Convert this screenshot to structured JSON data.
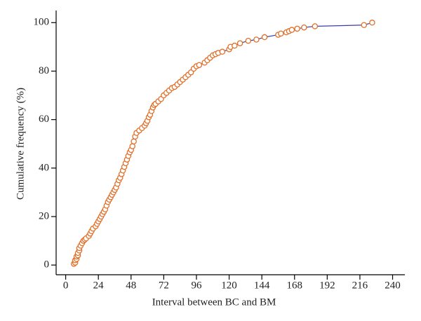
{
  "chart_data": {
    "type": "line",
    "x_label": "Interval between BC and BM",
    "y_label": "Cumulative frequency (%)",
    "x": [
      6,
      7,
      7,
      8,
      8,
      9,
      9,
      10,
      10,
      11,
      12,
      13,
      14,
      15,
      17,
      18,
      19,
      20,
      22,
      23,
      24,
      25,
      26,
      27,
      28,
      29,
      30,
      31,
      32,
      33,
      34,
      35,
      36,
      37,
      38,
      39,
      40,
      41,
      42,
      43,
      44,
      45,
      46,
      47,
      48,
      49,
      50,
      51,
      52,
      54,
      56,
      58,
      59,
      60,
      61,
      62,
      63,
      64,
      65,
      66,
      68,
      70,
      72,
      74,
      76,
      78,
      80,
      82,
      84,
      86,
      88,
      90,
      92,
      94,
      96,
      98,
      102,
      104,
      106,
      108,
      110,
      112,
      115,
      120,
      121,
      124,
      128,
      134,
      140,
      146,
      156,
      158,
      162,
      164,
      166,
      170,
      175,
      183,
      219,
      225
    ],
    "series": [
      {
        "color": "#3b3bb0",
        "marker_color": "#e0702a",
        "values": [
          0.5,
          1,
          2,
          2.5,
          3.5,
          4,
          5,
          6,
          7,
          8,
          9,
          10,
          10.5,
          11,
          12,
          13,
          14,
          15,
          16,
          17,
          18,
          19,
          20,
          21,
          22,
          23,
          24.5,
          26,
          27,
          28,
          29,
          30,
          31,
          32,
          33.5,
          35,
          36,
          37.5,
          39,
          40.5,
          42,
          43.5,
          45,
          46.5,
          47.5,
          49,
          51,
          53,
          54.5,
          55.5,
          56.5,
          57.5,
          58.5,
          59.5,
          61,
          62,
          63.5,
          65,
          66,
          66.5,
          67.5,
          68.5,
          70,
          71,
          72,
          73,
          73.5,
          74.5,
          75.5,
          76.5,
          77.5,
          78.5,
          79.5,
          81,
          82,
          82.5,
          83.5,
          84.5,
          85.5,
          86.5,
          87,
          87.5,
          88,
          89,
          90,
          90.5,
          91.5,
          92.5,
          93,
          94,
          95,
          95.5,
          96,
          96.5,
          97,
          97.5,
          98,
          98.5,
          99,
          100
        ]
      }
    ],
    "xlim": [
      -7,
      249
    ],
    "ylim": [
      -4,
      105
    ],
    "xticks": [
      0,
      24,
      48,
      72,
      96,
      120,
      144,
      168,
      192,
      216,
      240
    ],
    "yticks": [
      0,
      20,
      40,
      60,
      80,
      100
    ]
  }
}
